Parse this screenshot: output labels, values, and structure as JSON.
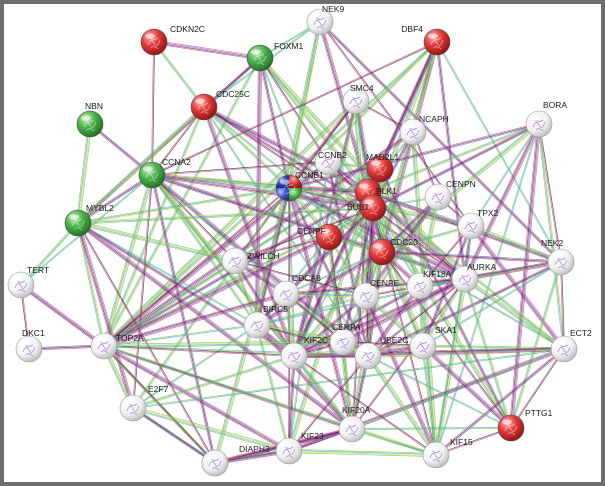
{
  "network": {
    "colors": {
      "red": "#d92b2b",
      "green": "#41a744",
      "white": "#f4f4f4",
      "blue": "#2f47c9",
      "edges": [
        "#2b2b2b",
        "#c9d93a",
        "#e53c9c",
        "#3aa9d1",
        "#6a5acd",
        "#7bbf4a"
      ]
    },
    "nodes": [
      {
        "id": "CDKN2C",
        "label": "CDKN2C",
        "color": "red"
      },
      {
        "id": "NEK9",
        "label": "NEK9",
        "color": "white"
      },
      {
        "id": "DBF4",
        "label": "DBF4",
        "color": "red"
      },
      {
        "id": "FOXM1",
        "label": "FOXM1",
        "color": "green"
      },
      {
        "id": "NBN",
        "label": "NBN",
        "color": "green"
      },
      {
        "id": "CDC25C",
        "label": "CDC25C",
        "color": "red"
      },
      {
        "id": "SMC4",
        "label": "SMC4",
        "color": "white"
      },
      {
        "id": "NCAPH",
        "label": "NCAPH",
        "color": "white"
      },
      {
        "id": "BORA",
        "label": "BORA",
        "color": "white"
      },
      {
        "id": "CCNA2",
        "label": "CCNA2",
        "color": "green"
      },
      {
        "id": "CCNB2",
        "label": "CCNB2",
        "color": "white"
      },
      {
        "id": "MAD2L1",
        "label": "MAD2L1",
        "color": "red"
      },
      {
        "id": "CCNB1",
        "label": "CCNB1",
        "color": "mixed"
      },
      {
        "id": "PLK1",
        "label": "PLK1",
        "color": "red"
      },
      {
        "id": "CENPN",
        "label": "CENPN",
        "color": "white"
      },
      {
        "id": "MYBL2",
        "label": "MYBL2",
        "color": "green"
      },
      {
        "id": "BUB1",
        "label": "BUB1",
        "color": "red"
      },
      {
        "id": "TPX2",
        "label": "TPX2",
        "color": "white"
      },
      {
        "id": "CENPF",
        "label": "CENPF",
        "color": "red"
      },
      {
        "id": "CDC20",
        "label": "CDC20",
        "color": "red"
      },
      {
        "id": "ZWILCH",
        "label": "ZWILCH",
        "color": "white"
      },
      {
        "id": "NEK2",
        "label": "NEK2",
        "color": "white"
      },
      {
        "id": "TERT",
        "label": "TERT",
        "color": "white"
      },
      {
        "id": "KIF18A",
        "label": "KIF18A",
        "color": "white"
      },
      {
        "id": "AURKA",
        "label": "AURKA",
        "color": "white"
      },
      {
        "id": "CENPE",
        "label": "CENPE",
        "color": "white"
      },
      {
        "id": "CDCA8",
        "label": "CDCA8",
        "color": "white"
      },
      {
        "id": "BIRC5",
        "label": "BIRC5",
        "color": "white"
      },
      {
        "id": "DKC1",
        "label": "DKC1",
        "color": "white"
      },
      {
        "id": "TOP2A",
        "label": "TOP2A",
        "color": "white"
      },
      {
        "id": "ECT2",
        "label": "ECT2",
        "color": "white"
      },
      {
        "id": "CENPA",
        "label": "CENPA",
        "color": "white"
      },
      {
        "id": "KIF2C",
        "label": "KIF2C",
        "color": "white"
      },
      {
        "id": "UBE2C",
        "label": "UBE2C",
        "color": "white"
      },
      {
        "id": "SKA1",
        "label": "SKA1",
        "color": "white"
      },
      {
        "id": "E2F7",
        "label": "E2F7",
        "color": "white"
      },
      {
        "id": "KIF20A",
        "label": "KIF20A",
        "color": "white"
      },
      {
        "id": "PTTG1",
        "label": "PTTG1",
        "color": "red"
      },
      {
        "id": "KIF15",
        "label": "KIF15",
        "color": "white"
      },
      {
        "id": "KIF23",
        "label": "KIF23",
        "color": "white"
      },
      {
        "id": "DIAPH3",
        "label": "DIAPH3",
        "color": "white"
      },
      {
        "id": "U_DIAPH",
        "label": "",
        "color": "white"
      }
    ],
    "edges": [
      [
        "DKC1",
        "TERT"
      ],
      [
        "TERT",
        "MYBL2"
      ],
      [
        "TERT",
        "TOP2A"
      ],
      [
        "TERT",
        "CCNA2"
      ],
      [
        "NBN",
        "CCNA2"
      ],
      [
        "NBN",
        "MYBL2"
      ],
      [
        "CDKN2C",
        "CCNA2"
      ],
      [
        "CDKN2C",
        "CDC25C"
      ],
      [
        "CDKN2C",
        "FOXM1"
      ],
      [
        "FOXM1",
        "NEK9"
      ],
      [
        "FOXM1",
        "CCNB1"
      ],
      [
        "FOXM1",
        "PLK1"
      ],
      [
        "FOXM1",
        "CDC25C"
      ],
      [
        "FOXM1",
        "TOP2A"
      ],
      [
        "FOXM1",
        "BIRC5"
      ],
      [
        "FOXM1",
        "CENPF"
      ],
      [
        "FOXM1",
        "MYBL2"
      ],
      [
        "FOXM1",
        "AURKA"
      ],
      [
        "FOXM1",
        "CCNB2"
      ],
      [
        "NEK9",
        "CCNB1"
      ],
      [
        "NEK9",
        "PLK1"
      ],
      [
        "NEK9",
        "CDC25C"
      ],
      [
        "NEK9",
        "NEK2"
      ],
      [
        "NEK9",
        "BIRC5"
      ],
      [
        "NEK9",
        "TPX2"
      ],
      [
        "DBF4",
        "CCNB1"
      ],
      [
        "DBF4",
        "CDC20"
      ],
      [
        "DBF4",
        "PLK1"
      ],
      [
        "DBF4",
        "MAD2L1"
      ],
      [
        "DBF4",
        "BUB1"
      ],
      [
        "DBF4",
        "CCNA2"
      ],
      [
        "DBF4",
        "TOP2A"
      ],
      [
        "DBF4",
        "KIF2C"
      ],
      [
        "DBF4",
        "NEK2"
      ],
      [
        "DBF4",
        "AURKA"
      ],
      [
        "DBF4",
        "CENPE"
      ],
      [
        "CDC25C",
        "CCNA2"
      ],
      [
        "CDC25C",
        "CCNB1"
      ],
      [
        "CDC25C",
        "PLK1"
      ],
      [
        "CDC25C",
        "CDC20"
      ],
      [
        "CDC25C",
        "BUB1"
      ],
      [
        "CDC25C",
        "MYBL2"
      ],
      [
        "CDC25C",
        "AURKA"
      ],
      [
        "CDC25C",
        "TOP2A"
      ],
      [
        "CDC25C",
        "KIF2C"
      ],
      [
        "CDC25C",
        "UBE2C"
      ],
      [
        "SMC4",
        "CCNB1"
      ],
      [
        "SMC4",
        "TOP2A"
      ],
      [
        "SMC4",
        "NCAPH"
      ],
      [
        "SMC4",
        "BUB1"
      ],
      [
        "SMC4",
        "CDC20"
      ],
      [
        "SMC4",
        "PLK1"
      ],
      [
        "SMC4",
        "KIF2C"
      ],
      [
        "SMC4",
        "CENPE"
      ],
      [
        "SMC4",
        "ZWILCH"
      ],
      [
        "SMC4",
        "CENPF"
      ],
      [
        "NCAPH",
        "TOP2A"
      ],
      [
        "NCAPH",
        "PLK1"
      ],
      [
        "NCAPH",
        "BUB1"
      ],
      [
        "NCAPH",
        "KIF15"
      ],
      [
        "NCAPH",
        "CENPN"
      ],
      [
        "BORA",
        "PLK1"
      ],
      [
        "BORA",
        "AURKA"
      ],
      [
        "BORA",
        "TPX2"
      ],
      [
        "BORA",
        "CCNB1"
      ],
      [
        "BORA",
        "CDC20"
      ],
      [
        "BORA",
        "NEK2"
      ],
      [
        "BORA",
        "ECT2"
      ],
      [
        "BORA",
        "PTTG1"
      ],
      [
        "BORA",
        "KIF15"
      ],
      [
        "BORA",
        "BUB1"
      ],
      [
        "CCNA2",
        "CCNB1"
      ],
      [
        "CCNA2",
        "CCNB2"
      ],
      [
        "CCNA2",
        "PLK1"
      ],
      [
        "CCNA2",
        "BUB1"
      ],
      [
        "CCNA2",
        "CDC20"
      ],
      [
        "CCNA2",
        "MYBL2"
      ],
      [
        "CCNA2",
        "TOP2A"
      ],
      [
        "CCNA2",
        "E2F7"
      ],
      [
        "CCNA2",
        "KIF2C"
      ],
      [
        "CCNA2",
        "UBE2C"
      ],
      [
        "CCNA2",
        "CENPA"
      ],
      [
        "CCNA2",
        "DIAPH3"
      ],
      [
        "CCNA2",
        "KIF20A"
      ],
      [
        "CCNA2",
        "ZWILCH"
      ],
      [
        "CCNA2",
        "BIRC5"
      ],
      [
        "CCNA2",
        "AURKA"
      ],
      [
        "CCNB2",
        "CCNB1"
      ],
      [
        "CCNB2",
        "PLK1"
      ],
      [
        "CCNB2",
        "CDC20"
      ],
      [
        "CCNB2",
        "BUB1"
      ],
      [
        "CCNB2",
        "MAD2L1"
      ],
      [
        "CCNB2",
        "TOP2A"
      ],
      [
        "CCNB2",
        "KIF23"
      ],
      [
        "CCNB2",
        "UBE2C"
      ],
      [
        "MAD2L1",
        "CDC20"
      ],
      [
        "MAD2L1",
        "BUB1"
      ],
      [
        "MAD2L1",
        "PLK1"
      ],
      [
        "MAD2L1",
        "CENPE"
      ],
      [
        "MAD2L1",
        "ZWILCH"
      ],
      [
        "MAD2L1",
        "PTTG1"
      ],
      [
        "MAD2L1",
        "KIF18A"
      ],
      [
        "MAD2L1",
        "CENPF"
      ],
      [
        "MAD2L1",
        "TOP2A"
      ],
      [
        "CCNB1",
        "PLK1"
      ],
      [
        "CCNB1",
        "CDC20"
      ],
      [
        "CCNB1",
        "BUB1"
      ],
      [
        "CCNB1",
        "CENPF"
      ],
      [
        "CCNB1",
        "TOP2A"
      ],
      [
        "CCNB1",
        "MYBL2"
      ],
      [
        "CCNB1",
        "AURKA"
      ],
      [
        "CCNB1",
        "KIF2C"
      ],
      [
        "CCNB1",
        "UBE2C"
      ],
      [
        "CCNB1",
        "DIAPH3"
      ],
      [
        "CCNB1",
        "KIF23"
      ],
      [
        "CCNB1",
        "E2F7"
      ],
      [
        "CCNB1",
        "KIF20A"
      ],
      [
        "CCNB1",
        "ECT2"
      ],
      [
        "CCNB1",
        "BIRC5"
      ],
      [
        "CCNB1",
        "TPX2"
      ],
      [
        "PLK1",
        "CDC20"
      ],
      [
        "PLK1",
        "BUB1"
      ],
      [
        "PLK1",
        "AURKA"
      ],
      [
        "PLK1",
        "TPX2"
      ],
      [
        "PLK1",
        "KIF2C"
      ],
      [
        "PLK1",
        "KIF23"
      ],
      [
        "PLK1",
        "KIF20A"
      ],
      [
        "PLK1",
        "ECT2"
      ],
      [
        "PLK1",
        "NEK2"
      ],
      [
        "PLK1",
        "CENPE"
      ],
      [
        "PLK1",
        "TOP2A"
      ],
      [
        "PLK1",
        "PTTG1"
      ],
      [
        "PLK1",
        "KIF15"
      ],
      [
        "CENPN",
        "CENPA"
      ],
      [
        "CENPN",
        "CENPE"
      ],
      [
        "CENPN",
        "BUB1"
      ],
      [
        "CENPN",
        "CDC20"
      ],
      [
        "CENPN",
        "KIF18A"
      ],
      [
        "CENPN",
        "TPX2"
      ],
      [
        "MYBL2",
        "TOP2A"
      ],
      [
        "MYBL2",
        "E2F7"
      ],
      [
        "MYBL2",
        "BIRC5"
      ],
      [
        "MYBL2",
        "KIF2C"
      ],
      [
        "MYBL2",
        "ZWILCH"
      ],
      [
        "MYBL2",
        "DIAPH3"
      ],
      [
        "MYBL2",
        "BUB1"
      ],
      [
        "MYBL2",
        "KIF20A"
      ],
      [
        "BUB1",
        "CDC20"
      ],
      [
        "BUB1",
        "CENPE"
      ],
      [
        "BUB1",
        "CENPF"
      ],
      [
        "BUB1",
        "ZWILCH"
      ],
      [
        "BUB1",
        "BIRC5"
      ],
      [
        "BUB1",
        "CDCA8"
      ],
      [
        "BUB1",
        "KIF2C"
      ],
      [
        "BUB1",
        "CENPA"
      ],
      [
        "BUB1",
        "SKA1"
      ],
      [
        "BUB1",
        "AURKA"
      ],
      [
        "BUB1",
        "TOP2A"
      ],
      [
        "BUB1",
        "UBE2C"
      ],
      [
        "BUB1",
        "KIF18A"
      ],
      [
        "TPX2",
        "AURKA"
      ],
      [
        "TPX2",
        "NEK2"
      ],
      [
        "TPX2",
        "KIF18A"
      ],
      [
        "TPX2",
        "CDC20"
      ],
      [
        "TPX2",
        "ECT2"
      ],
      [
        "TPX2",
        "KIF15"
      ],
      [
        "TPX2",
        "SKA1"
      ],
      [
        "CENPF",
        "CDC20"
      ],
      [
        "CENPF",
        "ZWILCH"
      ],
      [
        "CENPF",
        "CENPE"
      ],
      [
        "CENPF",
        "TOP2A"
      ],
      [
        "CENPF",
        "BIRC5"
      ],
      [
        "CENPF",
        "KIF2C"
      ],
      [
        "CENPF",
        "KIF20A"
      ],
      [
        "CENPF",
        "CENPA"
      ],
      [
        "CDC20",
        "CENPE"
      ],
      [
        "CDC20",
        "KIF18A"
      ],
      [
        "CDC20",
        "AURKA"
      ],
      [
        "CDC20",
        "UBE2C"
      ],
      [
        "CDC20",
        "KIF2C"
      ],
      [
        "CDC20",
        "PTTG1"
      ],
      [
        "CDC20",
        "SKA1"
      ],
      [
        "CDC20",
        "BIRC5"
      ],
      [
        "CDC20",
        "CDCA8"
      ],
      [
        "CDC20",
        "NEK2"
      ],
      [
        "CDC20",
        "KIF20A"
      ],
      [
        "ZWILCH",
        "CENPE"
      ],
      [
        "ZWILCH",
        "BIRC5"
      ],
      [
        "ZWILCH",
        "CDCA8"
      ],
      [
        "ZWILCH",
        "TOP2A"
      ],
      [
        "ZWILCH",
        "KIF2C"
      ],
      [
        "NEK2",
        "AURKA"
      ],
      [
        "NEK2",
        "ECT2"
      ],
      [
        "NEK2",
        "PTTG1"
      ],
      [
        "NEK2",
        "KIF18A"
      ],
      [
        "NEK2",
        "SKA1"
      ],
      [
        "NEK2",
        "UBE2C"
      ],
      [
        "KIF18A",
        "AURKA"
      ],
      [
        "KIF18A",
        "CENPE"
      ],
      [
        "KIF18A",
        "SKA1"
      ],
      [
        "KIF18A",
        "UBE2C"
      ],
      [
        "KIF18A",
        "KIF15"
      ],
      [
        "KIF18A",
        "KIF2C"
      ],
      [
        "AURKA",
        "ECT2"
      ],
      [
        "AURKA",
        "UBE2C"
      ],
      [
        "AURKA",
        "SKA1"
      ],
      [
        "AURKA",
        "KIF2C"
      ],
      [
        "AURKA",
        "BIRC5"
      ],
      [
        "AURKA",
        "CDCA8"
      ],
      [
        "AURKA",
        "KIF15"
      ],
      [
        "AURKA",
        "KIF20A"
      ],
      [
        "AURKA",
        "PTTG1"
      ],
      [
        "AURKA",
        "CENPA"
      ],
      [
        "CENPE",
        "CENPA"
      ],
      [
        "CENPE",
        "KIF2C"
      ],
      [
        "CENPE",
        "SKA1"
      ],
      [
        "CENPE",
        "UBE2C"
      ],
      [
        "CENPE",
        "CDCA8"
      ],
      [
        "CENPE",
        "KIF15"
      ],
      [
        "CENPE",
        "BIRC5"
      ],
      [
        "CDCA8",
        "BIRC5"
      ],
      [
        "CDCA8",
        "KIF2C"
      ],
      [
        "CDCA8",
        "CENPA"
      ],
      [
        "CDCA8",
        "UBE2C"
      ],
      [
        "CDCA8",
        "TOP2A"
      ],
      [
        "BIRC5",
        "TOP2A"
      ],
      [
        "BIRC5",
        "KIF2C"
      ],
      [
        "BIRC5",
        "CENPA"
      ],
      [
        "BIRC5",
        "UBE2C"
      ],
      [
        "BIRC5",
        "KIF23"
      ],
      [
        "BIRC5",
        "KIF20A"
      ],
      [
        "BIRC5",
        "E2F7"
      ],
      [
        "DKC1",
        "TOP2A"
      ],
      [
        "TOP2A",
        "E2F7"
      ],
      [
        "TOP2A",
        "KIF2C"
      ],
      [
        "TOP2A",
        "DIAPH3"
      ],
      [
        "TOP2A",
        "KIF23"
      ],
      [
        "TOP2A",
        "UBE2C"
      ],
      [
        "TOP2A",
        "KIF20A"
      ],
      [
        "TOP2A",
        "CENPA"
      ],
      [
        "TOP2A",
        "U_DIAPH"
      ],
      [
        "TOP2A",
        "KIF15"
      ],
      [
        "ECT2",
        "KIF23"
      ],
      [
        "ECT2",
        "KIF20A"
      ],
      [
        "ECT2",
        "KIF15"
      ],
      [
        "ECT2",
        "UBE2C"
      ],
      [
        "ECT2",
        "PTTG1"
      ],
      [
        "ECT2",
        "SKA1"
      ],
      [
        "ECT2",
        "KIF2C"
      ],
      [
        "ECT2",
        "E2F7"
      ],
      [
        "CENPA",
        "KIF2C"
      ],
      [
        "CENPA",
        "UBE2C"
      ],
      [
        "CENPA",
        "SKA1"
      ],
      [
        "CENPA",
        "KIF20A"
      ],
      [
        "KIF2C",
        "UBE2C"
      ],
      [
        "KIF2C",
        "KIF20A"
      ],
      [
        "KIF2C",
        "KIF23"
      ],
      [
        "KIF2C",
        "SKA1"
      ],
      [
        "KIF2C",
        "KIF15"
      ],
      [
        "KIF2C",
        "E2F7"
      ],
      [
        "UBE2C",
        "SKA1"
      ],
      [
        "UBE2C",
        "PTTG1"
      ],
      [
        "UBE2C",
        "KIF20A"
      ],
      [
        "UBE2C",
        "KIF15"
      ],
      [
        "UBE2C",
        "KIF23"
      ],
      [
        "SKA1",
        "KIF15"
      ],
      [
        "SKA1",
        "PTTG1"
      ],
      [
        "E2F7",
        "DIAPH3"
      ],
      [
        "E2F7",
        "U_DIAPH"
      ],
      [
        "E2F7",
        "KIF23"
      ],
      [
        "KIF20A",
        "KIF23"
      ],
      [
        "KIF20A",
        "KIF15"
      ],
      [
        "KIF20A",
        "DIAPH3"
      ],
      [
        "KIF20A",
        "PTTG1"
      ],
      [
        "KIF20A",
        "U_DIAPH"
      ],
      [
        "KIF15",
        "KIF23"
      ],
      [
        "KIF15",
        "PTTG1"
      ],
      [
        "KIF23",
        "DIAPH3"
      ],
      [
        "KIF23",
        "U_DIAPH"
      ],
      [
        "DIAPH3",
        "U_DIAPH"
      ]
    ]
  }
}
